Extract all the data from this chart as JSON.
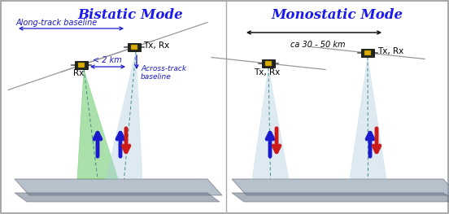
{
  "title_bistatic": "Bistatic Mode",
  "title_monostatic": "Monostatic Mode",
  "title_color": "#1a1aee",
  "title_fontsize": 12,
  "bg_color": "#ffffff",
  "border_color": "#aaaaaa",
  "label_along_track": "Along-track baseline",
  "label_less2km": "< 2 km",
  "label_across_track": "Across-track\nbaseline",
  "label_ca30_50": "ca 30 - 50 km",
  "label_tx_rx_bistatic_top": "Tx, Rx",
  "label_rx_bistatic": "Rx",
  "label_tx_rx_mono_left": "Tx, Rx",
  "label_tx_rx_mono_right": "Tx, Rx",
  "beam_green_color": "#44bb44",
  "beam_green_alpha": 0.45,
  "beam_blue_color": "#aaccdd",
  "beam_blue_alpha": 0.4,
  "ground_color": "#888899",
  "ground_alpha": 0.65,
  "sat_body_color": "#1a1a1a",
  "sat_panel_color": "#ddaa00",
  "arrow_color_blue": "#1a1acc",
  "arrow_color_red": "#cc1a1a",
  "dashed_line_color": "#448888",
  "orbit_line_color": "#999999",
  "annotation_color": "#1a1acc",
  "label_fontsize": 7.5,
  "small_fontsize": 7
}
